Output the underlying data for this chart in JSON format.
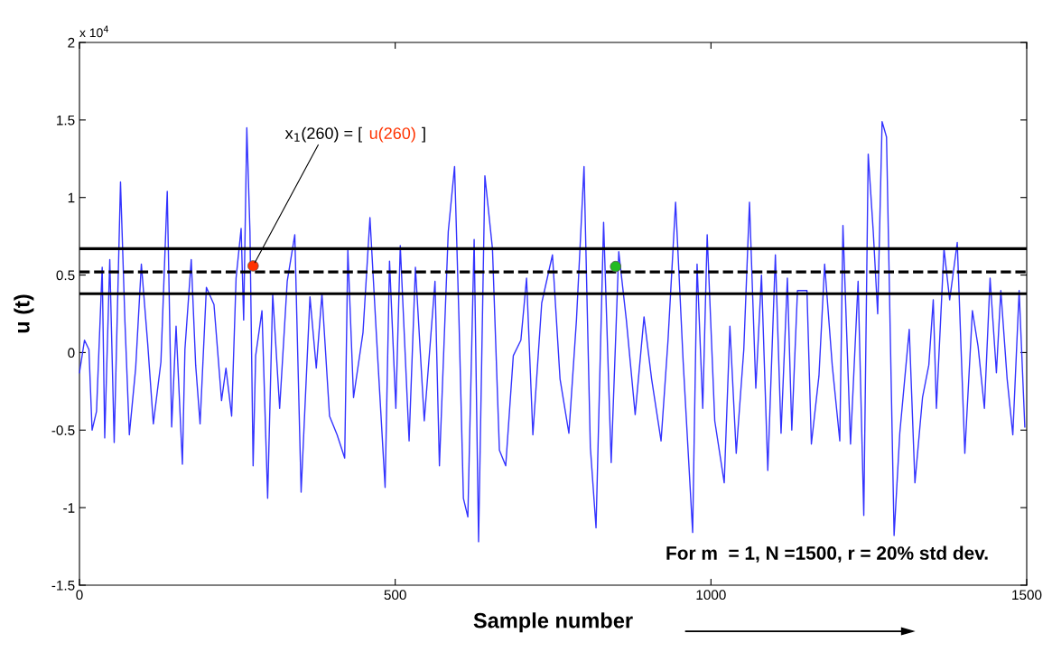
{
  "chart_data": {
    "type": "line",
    "xlabel": "Sample number",
    "ylabel": "u (t)",
    "xlim": [
      0,
      1500
    ],
    "xticks": [
      0,
      500,
      1000,
      1500
    ],
    "ylim": [
      -1.5,
      2
    ],
    "yticks": [
      -1.5,
      -1,
      -0.5,
      0,
      0.5,
      1,
      1.5,
      2
    ],
    "grid": false,
    "line_style": "solid",
    "marker": "none",
    "series": [
      {
        "color": "#3333ff",
        "x": [
          0,
          8,
          15,
          20,
          27,
          36,
          40,
          48,
          55,
          65,
          72,
          79,
          89,
          98,
          108,
          117,
          129,
          139,
          146,
          153,
          163,
          167,
          177,
          184,
          191,
          201,
          213,
          225,
          232,
          241,
          248,
          256,
          260,
          265,
          270,
          275,
          279,
          289,
          298,
          306,
          317,
          329,
          341,
          351,
          365,
          375,
          384,
          396,
          408,
          420,
          425,
          434,
          449,
          460,
          470,
          484,
          491,
          501,
          508,
          522,
          532,
          546,
          563,
          570,
          584,
          594,
          601,
          608,
          615,
          625,
          632,
          642,
          654,
          665,
          675,
          687,
          699,
          708,
          718,
          732,
          749,
          761,
          775,
          787,
          799,
          809,
          818,
          830,
          842,
          854,
          866,
          880,
          894,
          906,
          921,
          932,
          944,
          956,
          971,
          978,
          987,
          994,
          1006,
          1021,
          1030,
          1040,
          1052,
          1061,
          1071,
          1080,
          1090,
          1102,
          1111,
          1121,
          1128,
          1137,
          1152,
          1159,
          1171,
          1180,
          1192,
          1204,
          1209,
          1221,
          1233,
          1242,
          1249,
          1257,
          1264,
          1271,
          1278,
          1290,
          1299,
          1314,
          1323,
          1335,
          1345,
          1352,
          1357,
          1369,
          1378,
          1390,
          1402,
          1414,
          1423,
          1433,
          1442,
          1452,
          1459,
          1469,
          1478,
          1488,
          1497
        ],
        "values": [
          -0.13,
          0.08,
          0.02,
          -0.5,
          -0.38,
          0.55,
          -0.55,
          0.6,
          -0.58,
          1.1,
          0.2,
          -0.53,
          -0.1,
          0.57,
          0.06,
          -0.46,
          -0.06,
          1.04,
          -0.48,
          0.17,
          -0.72,
          0.02,
          0.6,
          -0.08,
          -0.46,
          0.42,
          0.31,
          -0.31,
          -0.1,
          -0.41,
          0.48,
          0.8,
          0.21,
          1.45,
          0.78,
          -0.73,
          -0.02,
          0.27,
          -0.94,
          0.38,
          -0.36,
          0.46,
          0.76,
          -0.9,
          0.36,
          -0.1,
          0.38,
          -0.41,
          -0.53,
          -0.68,
          0.66,
          -0.29,
          0.13,
          0.87,
          0.13,
          -0.87,
          0.59,
          -0.36,
          0.69,
          -0.57,
          0.55,
          -0.44,
          0.46,
          -0.73,
          0.78,
          1.2,
          0.21,
          -0.94,
          -1.06,
          0.73,
          -1.22,
          1.14,
          0.67,
          -0.63,
          -0.73,
          -0.02,
          0.08,
          0.48,
          -0.53,
          0.32,
          0.63,
          -0.17,
          -0.52,
          0.21,
          1.2,
          -0.61,
          -1.13,
          0.84,
          -0.71,
          0.65,
          0.21,
          -0.4,
          0.23,
          -0.17,
          -0.57,
          0.08,
          0.97,
          -0.06,
          -1.16,
          0.57,
          -0.36,
          0.76,
          -0.44,
          -0.84,
          0.17,
          -0.65,
          0.02,
          0.97,
          -0.23,
          0.5,
          -0.76,
          0.63,
          -0.52,
          0.48,
          -0.5,
          0.4,
          0.4,
          -0.59,
          -0.15,
          0.57,
          -0.08,
          -0.57,
          0.82,
          -0.59,
          0.46,
          -1.05,
          1.28,
          0.78,
          0.25,
          1.49,
          1.39,
          -1.18,
          -0.52,
          0.15,
          -0.84,
          -0.29,
          -0.08,
          0.34,
          -0.36,
          0.67,
          0.34,
          0.71,
          -0.65,
          0.27,
          0.04,
          -0.36,
          0.48,
          -0.13,
          0.4,
          -0.17,
          -0.53,
          0.4,
          -0.48
        ]
      },
      {
        "type": "scatter",
        "marker": "circle",
        "x": [
          275,
          849
        ],
        "values": [
          0.559,
          0.555
        ],
        "colors": [
          "#ff3300",
          "#22bb22"
        ]
      }
    ],
    "ref_lines": [
      {
        "axis": "y",
        "value": 0.67,
        "color": "#000000",
        "line_style": "solid"
      },
      {
        "axis": "y",
        "value": 0.52,
        "color": "#000000",
        "line_style": "dashed"
      },
      {
        "axis": "y",
        "value": 0.38,
        "color": "#000000",
        "line_style": "solid"
      }
    ],
    "annotations": [
      {
        "text": "x$_{1}$(260) = [",
        "x": 275,
        "y": 0.559
      },
      "u(260)",
      "]",
      "x 10$^{4}$",
      "For m  = 1, N =1500, r = 20% std dev."
    ]
  }
}
